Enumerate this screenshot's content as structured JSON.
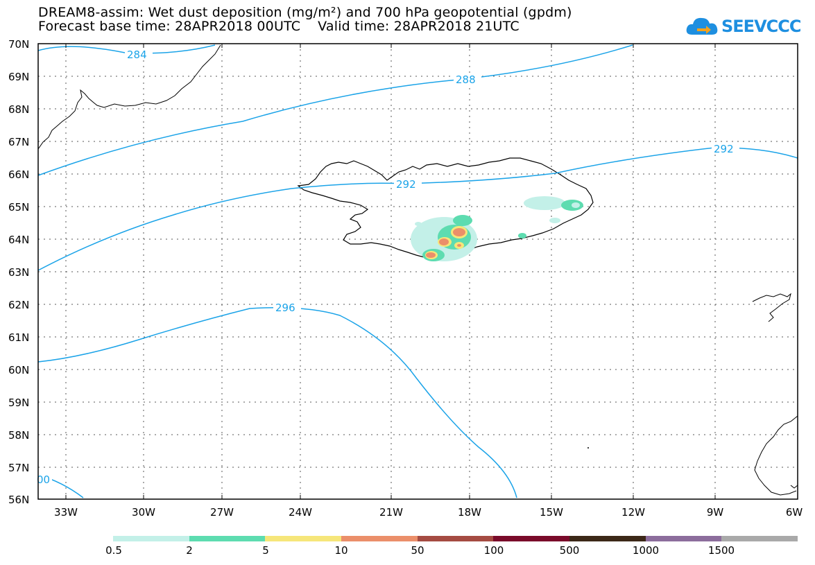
{
  "title_line1": "DREAM8-assim: Wet dust deposition (mg/m²) and 700 hPa geopotential (gpdm)",
  "title_line2": "Forecast base time: 28APR2018 00UTC    Valid time: 28APR2018 21UTC",
  "logo_text": "SEEVCCC",
  "logo_icon": "cloud-arrow-icon",
  "map": {
    "lat_labels": [
      "70N",
      "69N",
      "68N",
      "67N",
      "66N",
      "65N",
      "64N",
      "63N",
      "62N",
      "61N",
      "60N",
      "59N",
      "58N",
      "57N",
      "56N"
    ],
    "lon_labels": [
      "33W",
      "30W",
      "27W",
      "24W",
      "21W",
      "18W",
      "15W",
      "12W",
      "9W",
      "6W"
    ],
    "contour_labels": [
      "284",
      "288",
      "292",
      "292",
      "296",
      "00"
    ],
    "contour_color": "#1aa3e8",
    "region": "Iceland"
  },
  "legend": {
    "thresholds": [
      "0.5",
      "2",
      "5",
      "10",
      "50",
      "100",
      "500",
      "1000",
      "1500"
    ],
    "colors": [
      "#c3f0e8",
      "#5ddcb0",
      "#f6e67a",
      "#eb8f6a",
      "#a54b42",
      "#7a0a2a",
      "#3c2818",
      "#8c6d9c",
      "#a9a9a9"
    ]
  }
}
